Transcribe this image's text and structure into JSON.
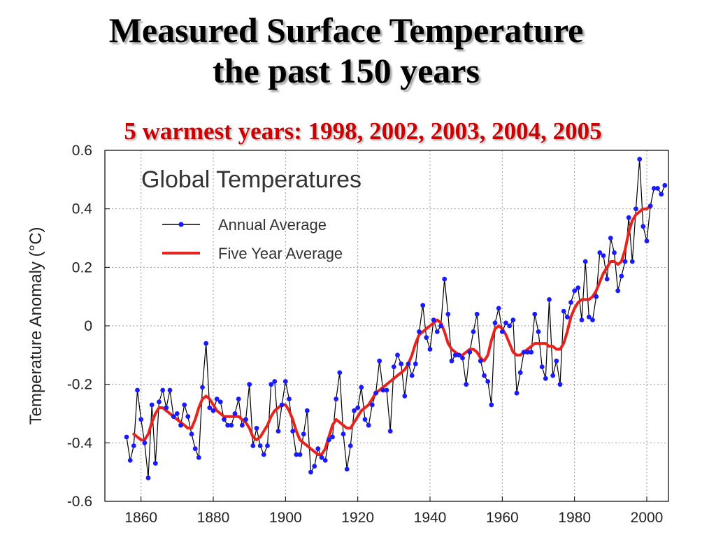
{
  "slide": {
    "title_line1": "Measured Surface Temperature",
    "title_line2": "the past 150 years",
    "subtitle": "5 warmest years:  1998, 2002, 2003, 2004, 2005"
  },
  "chart_data": {
    "type": "line",
    "title": "Global Temperatures",
    "xlabel": "",
    "ylabel": "Temperature Anomaly (°C)",
    "xlim": [
      1850,
      2006
    ],
    "ylim": [
      -0.6,
      0.6
    ],
    "xticks": [
      1860,
      1880,
      1900,
      1920,
      1940,
      1960,
      1980,
      2000
    ],
    "yticks": [
      -0.6,
      -0.4,
      -0.2,
      0,
      0.2,
      0.4,
      0.6
    ],
    "ytick_labels": [
      "-0.6",
      "-0.4",
      "-0.2",
      "0",
      "0.2",
      "0.4",
      "0.6"
    ],
    "grid": true,
    "legend_position": "top-left",
    "series": [
      {
        "name": "Annual Average",
        "color": "#1a1aff",
        "line_color": "#000000",
        "marker": "dot",
        "x": [
          1856,
          1857,
          1858,
          1859,
          1860,
          1861,
          1862,
          1863,
          1864,
          1865,
          1866,
          1867,
          1868,
          1869,
          1870,
          1871,
          1872,
          1873,
          1874,
          1875,
          1876,
          1877,
          1878,
          1879,
          1880,
          1881,
          1882,
          1883,
          1884,
          1885,
          1886,
          1887,
          1888,
          1889,
          1890,
          1891,
          1892,
          1893,
          1894,
          1895,
          1896,
          1897,
          1898,
          1899,
          1900,
          1901,
          1902,
          1903,
          1904,
          1905,
          1906,
          1907,
          1908,
          1909,
          1910,
          1911,
          1912,
          1913,
          1914,
          1915,
          1916,
          1917,
          1918,
          1919,
          1920,
          1921,
          1922,
          1923,
          1924,
          1925,
          1926,
          1927,
          1928,
          1929,
          1930,
          1931,
          1932,
          1933,
          1934,
          1935,
          1936,
          1937,
          1938,
          1939,
          1940,
          1941,
          1942,
          1943,
          1944,
          1945,
          1946,
          1947,
          1948,
          1949,
          1950,
          1951,
          1952,
          1953,
          1954,
          1955,
          1956,
          1957,
          1958,
          1959,
          1960,
          1961,
          1962,
          1963,
          1964,
          1965,
          1966,
          1967,
          1968,
          1969,
          1970,
          1971,
          1972,
          1973,
          1974,
          1975,
          1976,
          1977,
          1978,
          1979,
          1980,
          1981,
          1982,
          1983,
          1984,
          1985,
          1986,
          1987,
          1988,
          1989,
          1990,
          1991,
          1992,
          1993,
          1994,
          1995,
          1996,
          1997,
          1998,
          1999,
          2000,
          2001,
          2002,
          2003,
          2004,
          2005
        ],
        "values": [
          -0.38,
          -0.46,
          -0.41,
          -0.22,
          -0.32,
          -0.4,
          -0.52,
          -0.27,
          -0.47,
          -0.26,
          -0.22,
          -0.28,
          -0.22,
          -0.31,
          -0.3,
          -0.34,
          -0.27,
          -0.31,
          -0.37,
          -0.42,
          -0.45,
          -0.21,
          -0.06,
          -0.28,
          -0.29,
          -0.25,
          -0.26,
          -0.32,
          -0.34,
          -0.34,
          -0.3,
          -0.25,
          -0.34,
          -0.32,
          -0.2,
          -0.41,
          -0.35,
          -0.41,
          -0.44,
          -0.41,
          -0.2,
          -0.19,
          -0.36,
          -0.27,
          -0.19,
          -0.25,
          -0.36,
          -0.44,
          -0.44,
          -0.37,
          -0.29,
          -0.5,
          -0.48,
          -0.42,
          -0.45,
          -0.46,
          -0.39,
          -0.38,
          -0.25,
          -0.16,
          -0.37,
          -0.49,
          -0.41,
          -0.29,
          -0.28,
          -0.21,
          -0.32,
          -0.34,
          -0.27,
          -0.23,
          -0.12,
          -0.22,
          -0.22,
          -0.36,
          -0.14,
          -0.1,
          -0.13,
          -0.24,
          -0.13,
          -0.17,
          -0.13,
          -0.02,
          0.07,
          -0.04,
          -0.08,
          0.02,
          -0.02,
          0.0,
          0.16,
          0.04,
          -0.12,
          -0.1,
          -0.1,
          -0.11,
          -0.2,
          -0.09,
          -0.02,
          0.04,
          -0.12,
          -0.17,
          -0.19,
          -0.27,
          0.01,
          0.06,
          -0.02,
          0.01,
          0.0,
          0.02,
          -0.23,
          -0.16,
          -0.09,
          -0.09,
          -0.09,
          0.04,
          -0.02,
          -0.14,
          -0.18,
          0.09,
          -0.17,
          -0.12,
          -0.2,
          0.05,
          0.03,
          0.08,
          0.12,
          0.13,
          0.02,
          0.22,
          0.03,
          0.02,
          0.1,
          0.25,
          0.24,
          0.16,
          0.3,
          0.25,
          0.12,
          0.17,
          0.22,
          0.37,
          0.22,
          0.4,
          0.57,
          0.34,
          0.29,
          0.41,
          0.47,
          0.47,
          0.45,
          0.48
        ]
      },
      {
        "name": "Five Year Average",
        "color": "#e8231d",
        "x": [
          1858,
          1859,
          1860,
          1861,
          1862,
          1863,
          1864,
          1865,
          1866,
          1867,
          1868,
          1869,
          1870,
          1871,
          1872,
          1873,
          1874,
          1875,
          1876,
          1877,
          1878,
          1879,
          1880,
          1881,
          1882,
          1883,
          1884,
          1885,
          1886,
          1887,
          1888,
          1889,
          1890,
          1891,
          1892,
          1893,
          1894,
          1895,
          1896,
          1897,
          1898,
          1899,
          1900,
          1901,
          1902,
          1903,
          1904,
          1905,
          1906,
          1907,
          1908,
          1909,
          1910,
          1911,
          1912,
          1913,
          1914,
          1915,
          1916,
          1917,
          1918,
          1919,
          1920,
          1921,
          1922,
          1923,
          1924,
          1925,
          1926,
          1927,
          1928,
          1929,
          1930,
          1931,
          1932,
          1933,
          1934,
          1935,
          1936,
          1937,
          1938,
          1939,
          1940,
          1941,
          1942,
          1943,
          1944,
          1945,
          1946,
          1947,
          1948,
          1949,
          1950,
          1951,
          1952,
          1953,
          1954,
          1955,
          1956,
          1957,
          1958,
          1959,
          1960,
          1961,
          1962,
          1963,
          1964,
          1965,
          1966,
          1967,
          1968,
          1969,
          1970,
          1971,
          1972,
          1973,
          1974,
          1975,
          1976,
          1977,
          1978,
          1979,
          1980,
          1981,
          1982,
          1983,
          1984,
          1985,
          1986,
          1987,
          1988,
          1989,
          1990,
          1991,
          1992,
          1993,
          1994,
          1995,
          1996,
          1997,
          1998,
          1999,
          2000,
          2001
        ],
        "values": [
          -0.37,
          -0.38,
          -0.39,
          -0.39,
          -0.37,
          -0.33,
          -0.3,
          -0.28,
          -0.28,
          -0.29,
          -0.3,
          -0.31,
          -0.32,
          -0.33,
          -0.34,
          -0.35,
          -0.35,
          -0.32,
          -0.28,
          -0.25,
          -0.24,
          -0.25,
          -0.27,
          -0.29,
          -0.3,
          -0.31,
          -0.31,
          -0.31,
          -0.31,
          -0.31,
          -0.32,
          -0.33,
          -0.35,
          -0.38,
          -0.39,
          -0.38,
          -0.36,
          -0.34,
          -0.31,
          -0.29,
          -0.28,
          -0.27,
          -0.27,
          -0.29,
          -0.32,
          -0.36,
          -0.39,
          -0.4,
          -0.41,
          -0.42,
          -0.43,
          -0.44,
          -0.44,
          -0.42,
          -0.38,
          -0.34,
          -0.32,
          -0.33,
          -0.34,
          -0.35,
          -0.35,
          -0.33,
          -0.31,
          -0.29,
          -0.28,
          -0.27,
          -0.25,
          -0.23,
          -0.22,
          -0.21,
          -0.2,
          -0.19,
          -0.18,
          -0.17,
          -0.16,
          -0.15,
          -0.13,
          -0.1,
          -0.06,
          -0.03,
          -0.02,
          -0.01,
          0.0,
          0.01,
          0.02,
          0.01,
          -0.02,
          -0.06,
          -0.08,
          -0.09,
          -0.1,
          -0.1,
          -0.09,
          -0.08,
          -0.08,
          -0.09,
          -0.11,
          -0.12,
          -0.1,
          -0.05,
          -0.01,
          0.0,
          -0.01,
          -0.03,
          -0.06,
          -0.09,
          -0.1,
          -0.1,
          -0.09,
          -0.08,
          -0.07,
          -0.06,
          -0.06,
          -0.06,
          -0.06,
          -0.07,
          -0.07,
          -0.08,
          -0.08,
          -0.06,
          -0.02,
          0.03,
          0.06,
          0.08,
          0.09,
          0.09,
          0.09,
          0.1,
          0.12,
          0.15,
          0.18,
          0.2,
          0.22,
          0.22,
          0.21,
          0.22,
          0.26,
          0.32,
          0.36,
          0.38,
          0.39,
          0.4,
          0.4,
          0.41
        ]
      }
    ]
  }
}
